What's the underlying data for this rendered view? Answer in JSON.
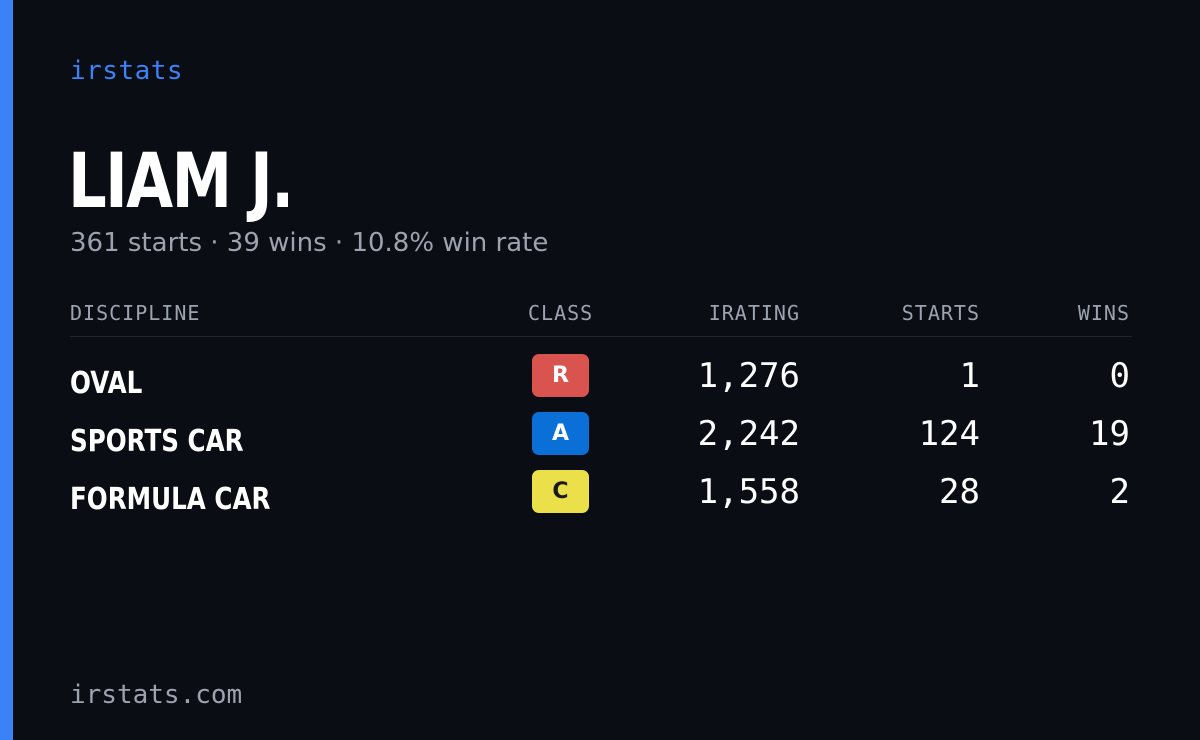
{
  "brand": "irstats",
  "player": {
    "name": "LIAM J.",
    "summary": "361 starts · 39 wins · 10.8% win rate"
  },
  "table": {
    "headers": {
      "discipline": "DISCIPLINE",
      "class": "CLASS",
      "irating": "IRATING",
      "starts": "STARTS",
      "wins": "WINS"
    },
    "rows": [
      {
        "discipline": "OVAL",
        "class": "R",
        "class_color": "#d9534f",
        "class_text_color": "#ffffff",
        "irating": "1,276",
        "starts": "1",
        "wins": "0"
      },
      {
        "discipline": "SPORTS CAR",
        "class": "A",
        "class_color": "#0a6fd6",
        "class_text_color": "#ffffff",
        "irating": "2,242",
        "starts": "124",
        "wins": "19"
      },
      {
        "discipline": "FORMULA CAR",
        "class": "C",
        "class_color": "#ebe04a",
        "class_text_color": "#1a1a1a",
        "irating": "1,558",
        "starts": "28",
        "wins": "2"
      }
    ]
  },
  "footer": "irstats.com",
  "colors": {
    "background": "#0a0d14",
    "accent": "#3b82f6",
    "muted_text": "#9ca3af",
    "primary_text": "#ffffff"
  }
}
